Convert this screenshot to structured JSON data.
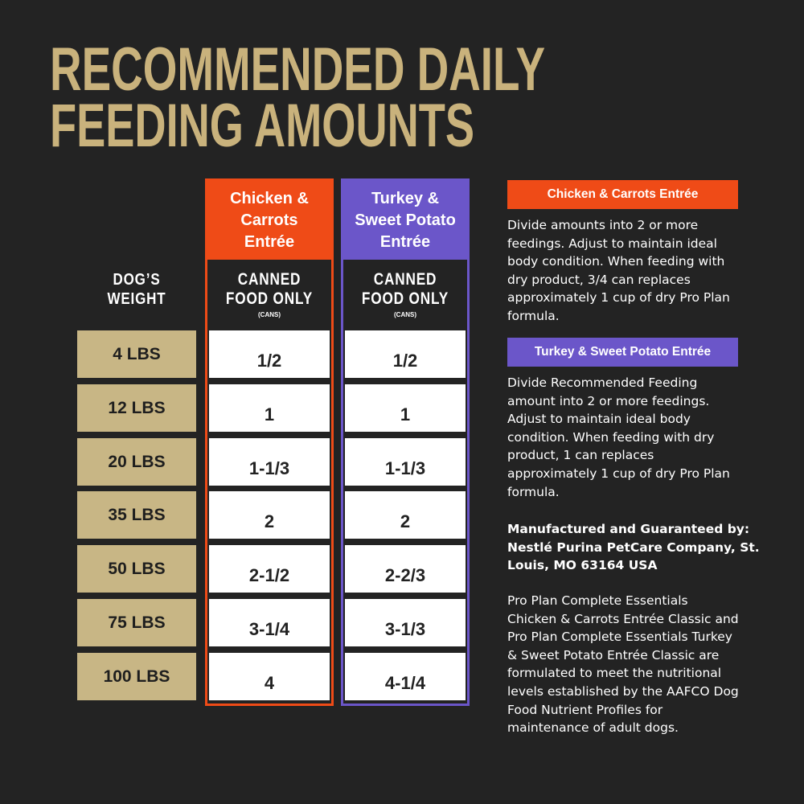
{
  "title": [
    "RECOMMENDED DAILY",
    "FEEDING AMOUNTS"
  ],
  "table": {
    "weight_header": [
      "DOG’S",
      "WEIGHT"
    ],
    "columns": [
      {
        "name": [
          "Chicken &",
          "Carrots",
          "Entrée"
        ],
        "subheader": [
          "CANNED",
          "FOOD ONLY"
        ],
        "unit": "(CANS)",
        "color": "#ef4b17"
      },
      {
        "name": [
          "Turkey &",
          "Sweet Potato",
          "Entrée"
        ],
        "subheader": [
          "CANNED",
          "FOOD ONLY"
        ],
        "unit": "(CANS)",
        "color": "#6b56c9"
      }
    ],
    "rows": [
      {
        "weight": "4 LBS",
        "amounts": [
          "1/2",
          "1/2"
        ]
      },
      {
        "weight": "12 LBS",
        "amounts": [
          "1",
          "1"
        ]
      },
      {
        "weight": "20 LBS",
        "amounts": [
          "1-1/3",
          "1-1/3"
        ]
      },
      {
        "weight": "35 LBS",
        "amounts": [
          "2",
          "2"
        ]
      },
      {
        "weight": "50 LBS",
        "amounts": [
          "2-1/2",
          "2-2/3"
        ]
      },
      {
        "weight": "75 LBS",
        "amounts": [
          "3-1/4",
          "3-1/3"
        ]
      },
      {
        "weight": "100 LBS",
        "amounts": [
          "4",
          "4-1/4"
        ]
      }
    ]
  },
  "notes": [
    {
      "label": "Chicken & Carrots Entrée",
      "color": "#ef4b17",
      "lines": [
        "Divide amounts into 2 or more",
        "feedings. Adjust to maintain ideal",
        "body condition. When feeding with",
        "dry product, 3/4 can replaces",
        "approximately 1 cup of dry Pro Plan",
        "formula."
      ]
    },
    {
      "label": "Turkey & Sweet Potato Entrée",
      "color": "#6b56c9",
      "lines": [
        "Divide Recommended Feeding",
        "amount into 2 or more feedings.",
        "Adjust to maintain ideal body",
        "condition. When feeding with dry",
        "product, 1 can replaces",
        "approximately 1 cup of dry Pro Plan",
        "formula."
      ]
    }
  ],
  "manufacturer": [
    "Manufactured and Guaranteed by:",
    "Nestlé Purina PetCare Company, St.",
    "Louis, MO 63164 USA"
  ],
  "disclaimer": [
    "Pro Plan Complete Essentials",
    "Chicken & Carrots Entrée Classic and",
    "Pro Plan Complete Essentials Turkey",
    "& Sweet Potato Entrée Classic are",
    "formulated to meet the nutritional",
    "levels established by the AAFCO Dog",
    "Food Nutrient Profiles for",
    "maintenance of adult dogs."
  ]
}
